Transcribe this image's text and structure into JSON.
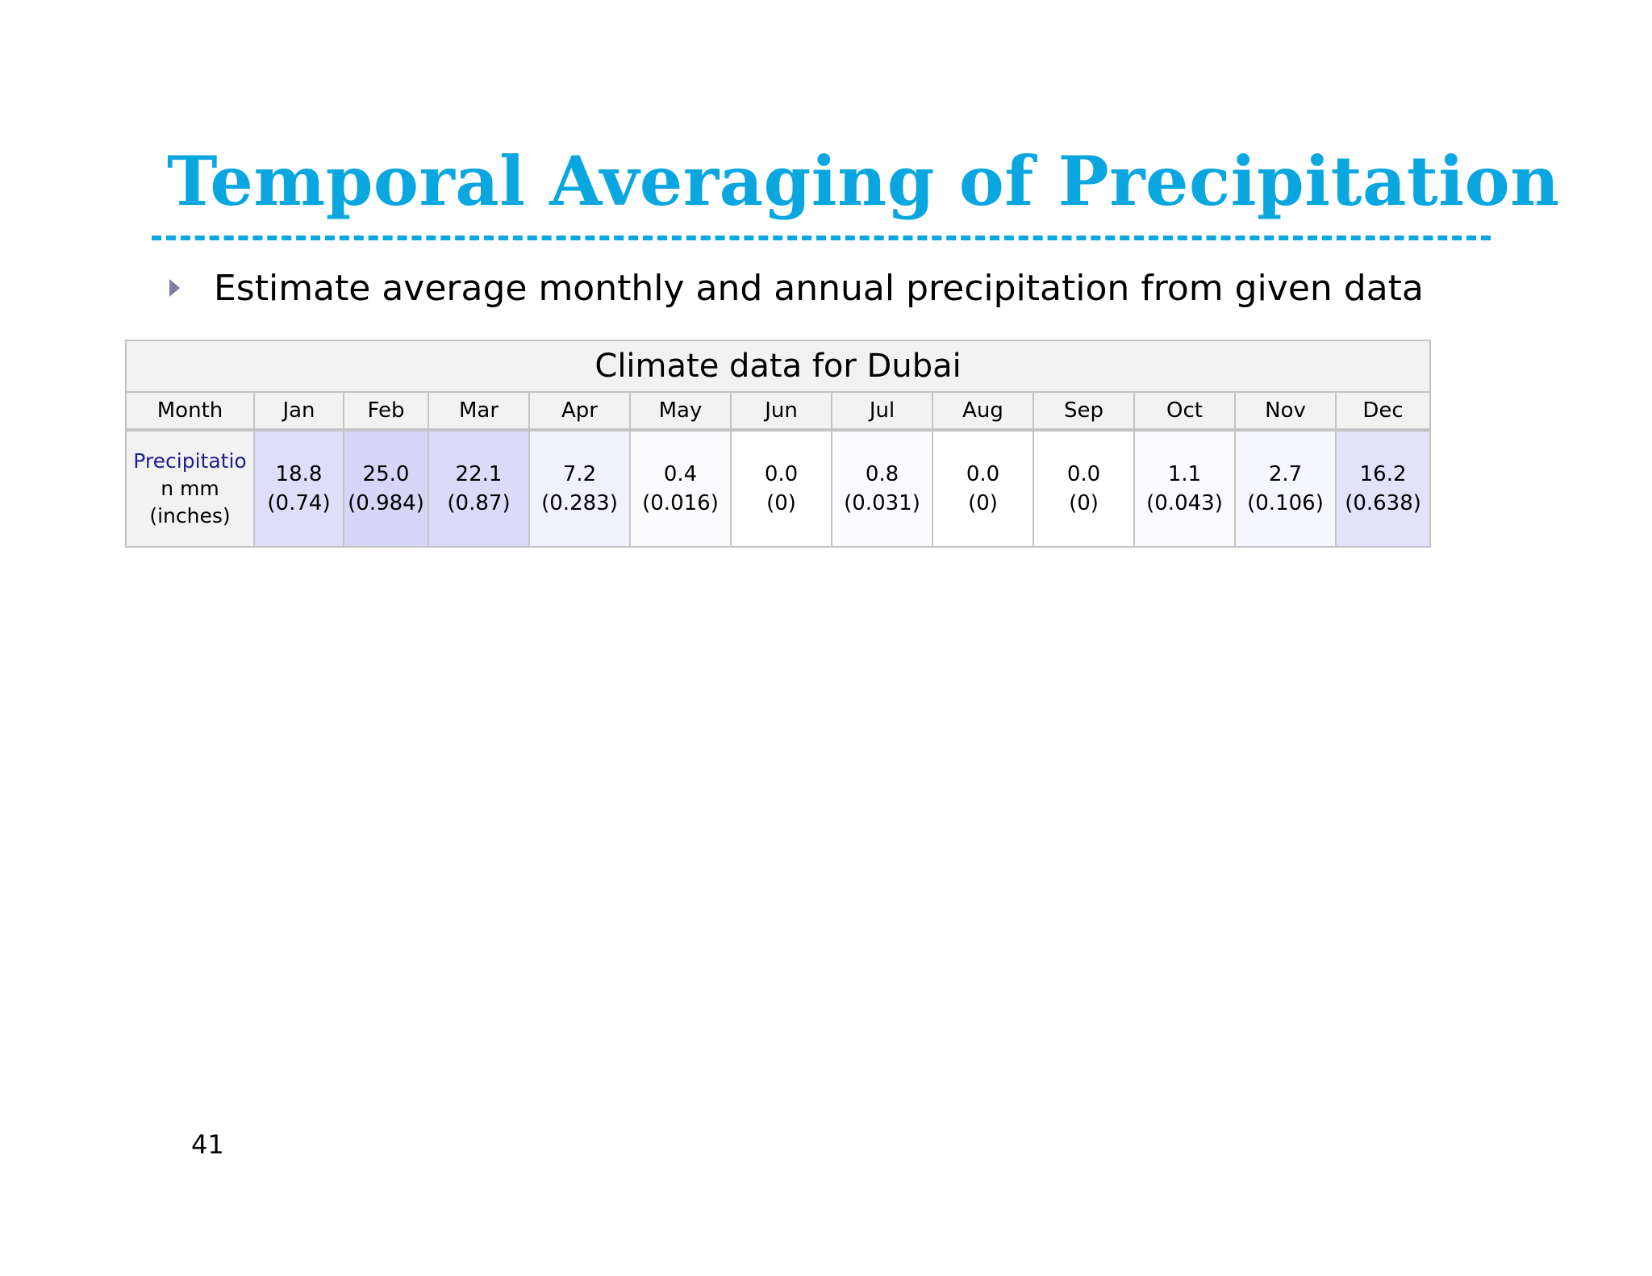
{
  "slide": {
    "title": "Temporal Averaging of Precipitation",
    "bullet": "Estimate average monthly and annual precipitation from given data",
    "page_number": "41"
  },
  "table": {
    "caption": "Climate data for Dubai",
    "header_label": "Month",
    "row_label_line1": "Precipitatio",
    "row_label_line2": "n mm",
    "row_label_line3": "(inches)",
    "months": [
      {
        "name": "Jan",
        "mm": "18.8",
        "inches": "(0.74)",
        "shade": "#dedefa"
      },
      {
        "name": "Feb",
        "mm": "25.0",
        "inches": "(0.984)",
        "shade": "#d6d6f8"
      },
      {
        "name": "Mar",
        "mm": "22.1",
        "inches": "(0.87)",
        "shade": "#dadaf9"
      },
      {
        "name": "Apr",
        "mm": "7.2",
        "inches": "(0.283)",
        "shade": "#f1f1fd"
      },
      {
        "name": "May",
        "mm": "0.4",
        "inches": "(0.016)",
        "shade": "#fcfcff"
      },
      {
        "name": "Jun",
        "mm": "0.0",
        "inches": "(0)",
        "shade": "#ffffff"
      },
      {
        "name": "Jul",
        "mm": "0.8",
        "inches": "(0.031)",
        "shade": "#fbfbff"
      },
      {
        "name": "Aug",
        "mm": "0.0",
        "inches": "(0)",
        "shade": "#ffffff"
      },
      {
        "name": "Sep",
        "mm": "0.0",
        "inches": "(0)",
        "shade": "#ffffff"
      },
      {
        "name": "Oct",
        "mm": "1.1",
        "inches": "(0.043)",
        "shade": "#fafaff"
      },
      {
        "name": "Nov",
        "mm": "2.7",
        "inches": "(0.106)",
        "shade": "#f6f6fe"
      },
      {
        "name": "Dec",
        "mm": "16.2",
        "inches": "(0.638)",
        "shade": "#e2e2fb"
      }
    ]
  },
  "colors": {
    "title": "#0aa6df",
    "row_label": "#1f1f8f",
    "bullet_arrow": "#7f7fa3"
  }
}
